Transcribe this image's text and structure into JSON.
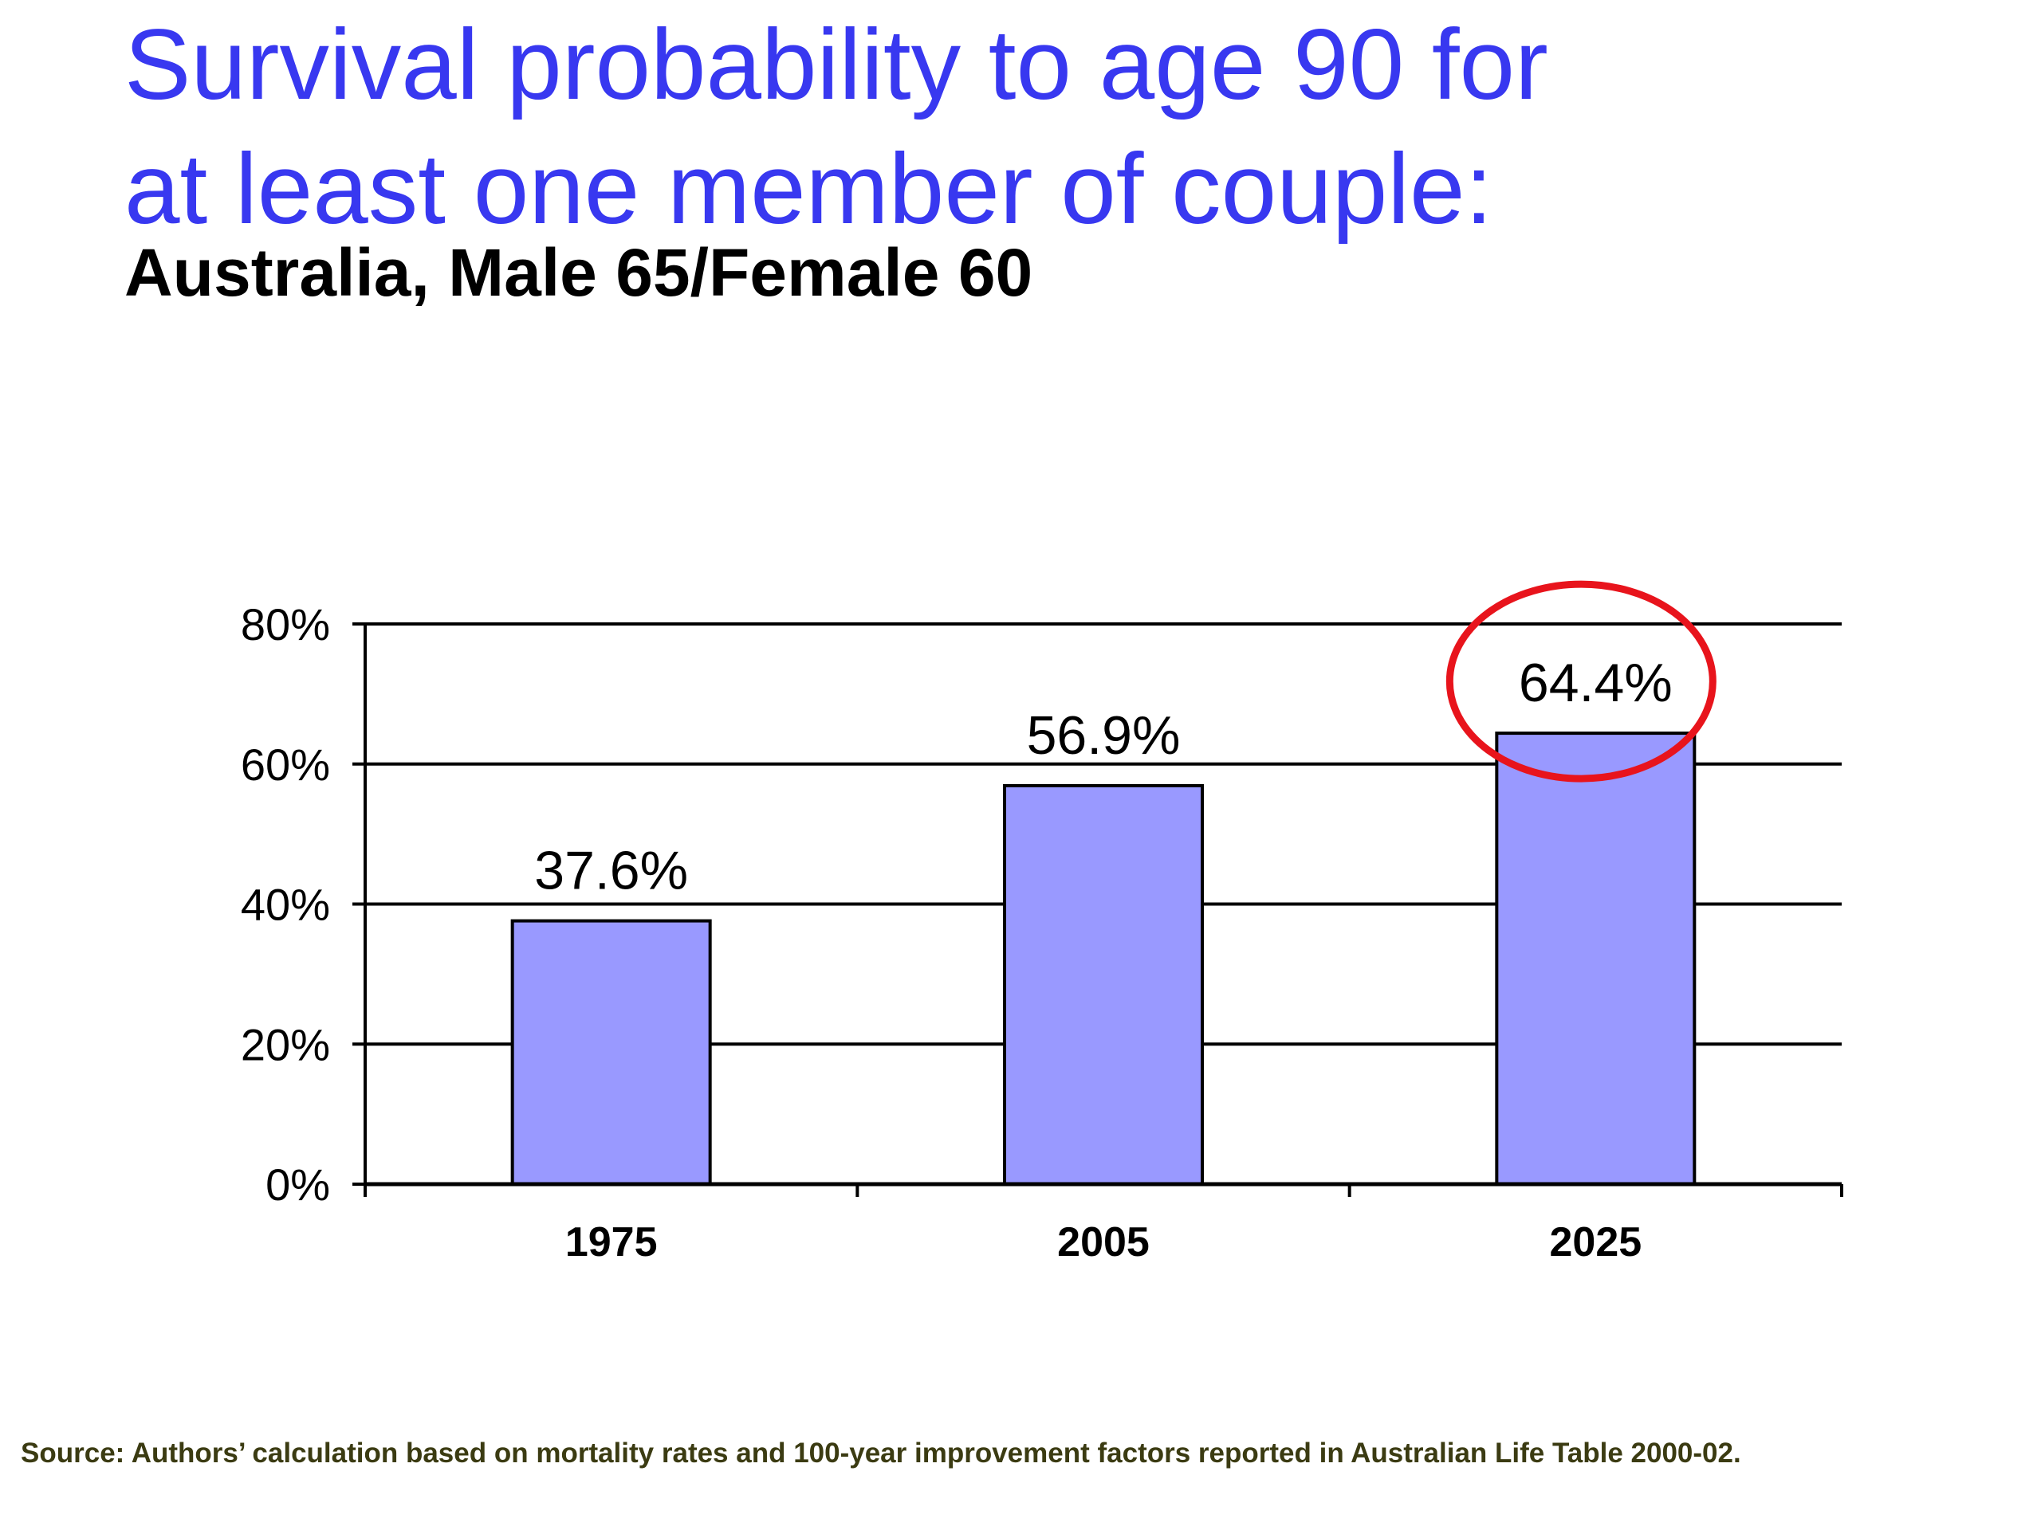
{
  "page": {
    "title_lines": [
      "Survival probability to age 90 for",
      "at least one member of couple:"
    ],
    "subtitle": "Australia, Male 65/Female 60",
    "source": "Source: Authors’ calculation based on mortality rates and 100-year improvement factors reported in Australian Life Table 2000-02."
  },
  "colors": {
    "title": "#3838f0",
    "bar_fill": "#9999ff",
    "bar_stroke": "#000000",
    "highlight_circle": "#e8141c",
    "source_text": "#3b3b12"
  },
  "chart_data": {
    "type": "bar",
    "categories": [
      "1975",
      "2005",
      "2025"
    ],
    "values": [
      37.6,
      56.9,
      64.4
    ],
    "data_labels": [
      "37.6%",
      "56.9%",
      "64.4%"
    ],
    "ylim": [
      0,
      80
    ],
    "y_ticks": [
      0,
      20,
      40,
      60,
      80
    ],
    "y_tick_labels": [
      "0%",
      "20%",
      "40%",
      "60%",
      "80%"
    ],
    "xlabel": "",
    "ylabel": "",
    "grid": true,
    "legend": "none",
    "highlighted_category": "2025"
  }
}
